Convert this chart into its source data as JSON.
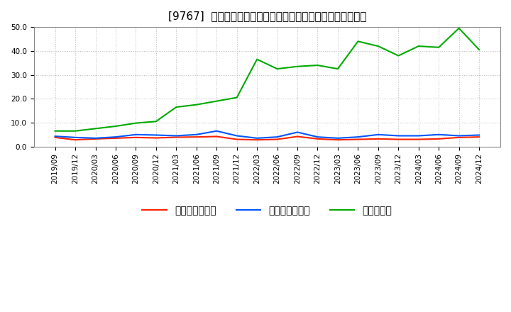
{
  "title": "[9767]  売上債権回転率、買入債務回転率、在庫回転率の推移",
  "x_labels": [
    "2019/09",
    "2019/12",
    "2020/03",
    "2020/06",
    "2020/09",
    "2020/12",
    "2021/03",
    "2021/06",
    "2021/09",
    "2021/12",
    "2022/03",
    "2022/06",
    "2022/09",
    "2022/12",
    "2023/03",
    "2023/06",
    "2023/09",
    "2023/12",
    "2024/03",
    "2024/06",
    "2024/09",
    "2024/12"
  ],
  "receivables_turnover": [
    3.8,
    2.8,
    3.2,
    3.5,
    3.8,
    3.6,
    3.9,
    4.0,
    4.2,
    3.0,
    2.8,
    3.0,
    4.2,
    3.2,
    2.8,
    3.0,
    3.2,
    3.0,
    3.0,
    3.2,
    3.8,
    4.0
  ],
  "payables_turnover": [
    4.3,
    3.8,
    3.5,
    4.0,
    5.0,
    4.8,
    4.5,
    5.0,
    6.5,
    4.5,
    3.5,
    4.0,
    6.0,
    4.0,
    3.5,
    4.0,
    5.0,
    4.5,
    4.5,
    5.0,
    4.5,
    4.8
  ],
  "inventory_turnover": [
    6.5,
    6.5,
    7.5,
    8.5,
    9.8,
    10.5,
    16.5,
    17.5,
    19.0,
    20.5,
    36.5,
    32.5,
    33.5,
    34.0,
    32.5,
    44.0,
    42.0,
    38.0,
    42.0,
    41.5,
    49.5,
    40.5
  ],
  "color_receivables": "#ff2200",
  "color_payables": "#0055ff",
  "color_inventory": "#00aa00",
  "ylim": [
    0.0,
    50.0
  ],
  "yticks": [
    0.0,
    10.0,
    20.0,
    30.0,
    40.0,
    50.0
  ],
  "legend_labels": [
    "売上債権回転率",
    "買入債務回転率",
    "在庫回転率"
  ],
  "bg_color": "#ffffff",
  "plot_bg_color": "#ffffff",
  "grid_color": "#aaaaaa",
  "title_fontsize": 11,
  "tick_fontsize": 7.5,
  "legend_fontsize": 9
}
